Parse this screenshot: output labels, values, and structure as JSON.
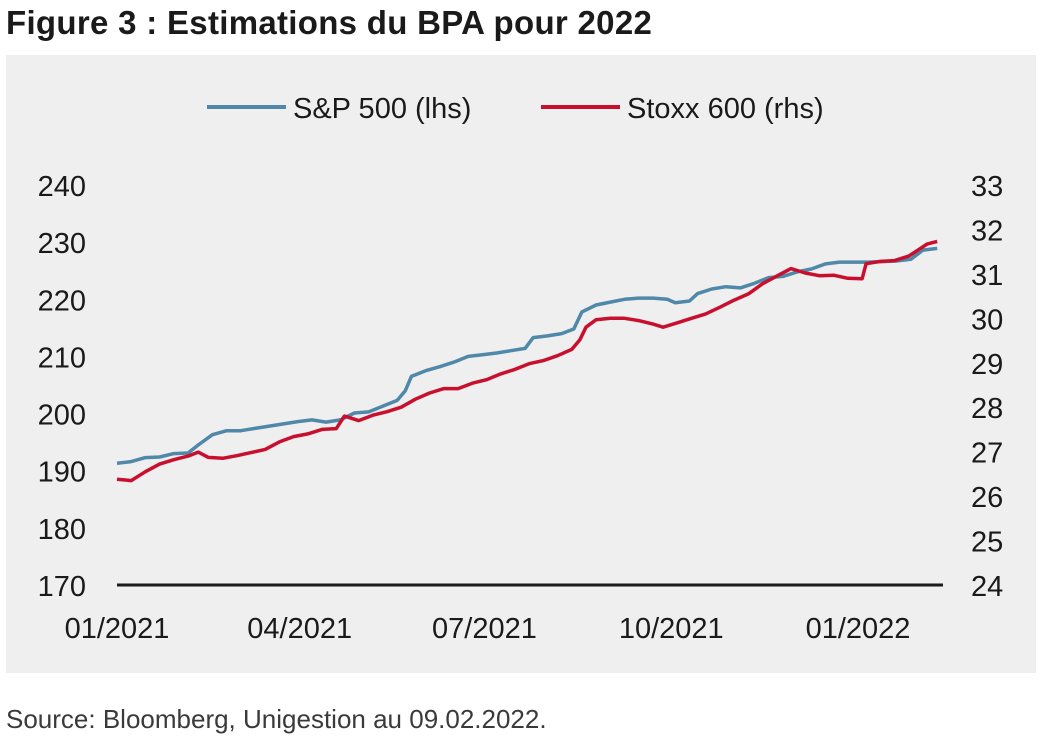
{
  "figure_title": "Figure 3 : Estimations du BPA pour 2022",
  "source": "Source: Bloomberg, Unigestion au 09.02.2022.",
  "colors": {
    "sp500": "#4f88a8",
    "stoxx600": "#c8102e",
    "background": "#efefef",
    "axis": "#1a1a1a"
  },
  "chart_data": {
    "type": "line",
    "title": "",
    "xlabel": "",
    "ylabel": "",
    "legend_position": "top-center",
    "grid": false,
    "x_range": [
      "2021-01-01",
      "2022-02-09"
    ],
    "x_ticks": [
      "2021-01-01",
      "2021-04-01",
      "2021-07-01",
      "2021-10-01",
      "2022-01-01"
    ],
    "x_tick_labels": [
      "01/2021",
      "04/2021",
      "07/2021",
      "10/2021",
      "01/2022"
    ],
    "y_left": {
      "range": [
        170,
        240
      ],
      "ticks": [
        "170",
        "180",
        "190",
        "200",
        "210",
        "220",
        "230",
        "240"
      ]
    },
    "y_right": {
      "range": [
        24,
        33
      ],
      "ticks": [
        "24",
        "25",
        "26",
        "27",
        "28",
        "29",
        "30",
        "31",
        "32",
        "33"
      ]
    },
    "series": [
      {
        "name": "S&P 500 (lhs)",
        "axis": "left",
        "color": "#4f88a8",
        "points": [
          [
            "2021-01-01",
            191.3
          ],
          [
            "2021-01-08",
            191.6
          ],
          [
            "2021-01-15",
            192.3
          ],
          [
            "2021-01-22",
            192.4
          ],
          [
            "2021-01-29",
            193.0
          ],
          [
            "2021-02-05",
            193.1
          ],
          [
            "2021-02-10",
            194.5
          ],
          [
            "2021-02-17",
            196.3
          ],
          [
            "2021-02-24",
            197.0
          ],
          [
            "2021-03-03",
            197.0
          ],
          [
            "2021-03-10",
            197.4
          ],
          [
            "2021-03-17",
            197.8
          ],
          [
            "2021-03-24",
            198.2
          ],
          [
            "2021-03-31",
            198.6
          ],
          [
            "2021-04-07",
            198.9
          ],
          [
            "2021-04-14",
            198.5
          ],
          [
            "2021-04-21",
            198.9
          ],
          [
            "2021-04-28",
            200.1
          ],
          [
            "2021-05-05",
            200.3
          ],
          [
            "2021-05-12",
            201.3
          ],
          [
            "2021-05-19",
            202.3
          ],
          [
            "2021-05-23",
            204.0
          ],
          [
            "2021-05-26",
            206.5
          ],
          [
            "2021-06-02",
            207.5
          ],
          [
            "2021-06-09",
            208.2
          ],
          [
            "2021-06-16",
            209.0
          ],
          [
            "2021-06-23",
            210.0
          ],
          [
            "2021-06-30",
            210.3
          ],
          [
            "2021-07-07",
            210.6
          ],
          [
            "2021-07-14",
            211.0
          ],
          [
            "2021-07-21",
            211.4
          ],
          [
            "2021-07-25",
            213.3
          ],
          [
            "2021-08-01",
            213.6
          ],
          [
            "2021-08-08",
            214.0
          ],
          [
            "2021-08-14",
            214.8
          ],
          [
            "2021-08-18",
            217.8
          ],
          [
            "2021-08-25",
            219.0
          ],
          [
            "2021-09-01",
            219.5
          ],
          [
            "2021-09-08",
            220.0
          ],
          [
            "2021-09-15",
            220.2
          ],
          [
            "2021-09-22",
            220.2
          ],
          [
            "2021-09-29",
            220.0
          ],
          [
            "2021-10-03",
            219.4
          ],
          [
            "2021-10-10",
            219.7
          ],
          [
            "2021-10-14",
            221.0
          ],
          [
            "2021-10-21",
            221.8
          ],
          [
            "2021-10-28",
            222.2
          ],
          [
            "2021-11-04",
            222.0
          ],
          [
            "2021-11-11",
            222.8
          ],
          [
            "2021-11-18",
            223.8
          ],
          [
            "2021-11-25",
            224.0
          ],
          [
            "2021-12-02",
            224.8
          ],
          [
            "2021-12-09",
            225.3
          ],
          [
            "2021-12-16",
            226.2
          ],
          [
            "2021-12-23",
            226.5
          ],
          [
            "2021-12-30",
            226.5
          ],
          [
            "2022-01-06",
            226.5
          ],
          [
            "2022-01-13",
            226.6
          ],
          [
            "2022-01-20",
            226.7
          ],
          [
            "2022-01-27",
            227.0
          ],
          [
            "2022-02-02",
            228.6
          ],
          [
            "2022-02-09",
            228.9
          ]
        ]
      },
      {
        "name": "Stoxx 600 (rhs)",
        "axis": "right",
        "color": "#c8102e",
        "points": [
          [
            "2021-01-01",
            26.38
          ],
          [
            "2021-01-08",
            26.35
          ],
          [
            "2021-01-15",
            26.55
          ],
          [
            "2021-01-22",
            26.72
          ],
          [
            "2021-01-29",
            26.82
          ],
          [
            "2021-02-05",
            26.9
          ],
          [
            "2021-02-10",
            26.99
          ],
          [
            "2021-02-15",
            26.87
          ],
          [
            "2021-02-22",
            26.85
          ],
          [
            "2021-03-01",
            26.91
          ],
          [
            "2021-03-08",
            26.98
          ],
          [
            "2021-03-15",
            27.05
          ],
          [
            "2021-03-22",
            27.22
          ],
          [
            "2021-03-29",
            27.34
          ],
          [
            "2021-04-05",
            27.4
          ],
          [
            "2021-04-12",
            27.5
          ],
          [
            "2021-04-19",
            27.52
          ],
          [
            "2021-04-23",
            27.8
          ],
          [
            "2021-04-30",
            27.7
          ],
          [
            "2021-05-07",
            27.82
          ],
          [
            "2021-05-14",
            27.9
          ],
          [
            "2021-05-21",
            28.0
          ],
          [
            "2021-05-28",
            28.18
          ],
          [
            "2021-06-04",
            28.32
          ],
          [
            "2021-06-11",
            28.42
          ],
          [
            "2021-06-18",
            28.42
          ],
          [
            "2021-06-25",
            28.54
          ],
          [
            "2021-07-02",
            28.62
          ],
          [
            "2021-07-09",
            28.75
          ],
          [
            "2021-07-16",
            28.85
          ],
          [
            "2021-07-23",
            28.98
          ],
          [
            "2021-07-30",
            29.05
          ],
          [
            "2021-08-06",
            29.16
          ],
          [
            "2021-08-13",
            29.3
          ],
          [
            "2021-08-17",
            29.52
          ],
          [
            "2021-08-20",
            29.8
          ],
          [
            "2021-08-25",
            29.97
          ],
          [
            "2021-09-01",
            30.0
          ],
          [
            "2021-09-08",
            30.0
          ],
          [
            "2021-09-15",
            29.95
          ],
          [
            "2021-09-22",
            29.87
          ],
          [
            "2021-09-27",
            29.8
          ],
          [
            "2021-10-04",
            29.9
          ],
          [
            "2021-10-11",
            30.0
          ],
          [
            "2021-10-18",
            30.1
          ],
          [
            "2021-10-25",
            30.25
          ],
          [
            "2021-11-01",
            30.41
          ],
          [
            "2021-11-08",
            30.55
          ],
          [
            "2021-11-15",
            30.78
          ],
          [
            "2021-11-22",
            30.95
          ],
          [
            "2021-11-29",
            31.12
          ],
          [
            "2021-12-06",
            31.02
          ],
          [
            "2021-12-13",
            30.96
          ],
          [
            "2021-12-20",
            30.97
          ],
          [
            "2021-12-27",
            30.9
          ],
          [
            "2022-01-03",
            30.89
          ],
          [
            "2022-01-05",
            31.23
          ],
          [
            "2022-01-12",
            31.28
          ],
          [
            "2022-01-19",
            31.3
          ],
          [
            "2022-01-26",
            31.4
          ],
          [
            "2022-01-31",
            31.55
          ],
          [
            "2022-02-04",
            31.67
          ],
          [
            "2022-02-09",
            31.73
          ]
        ]
      }
    ]
  }
}
